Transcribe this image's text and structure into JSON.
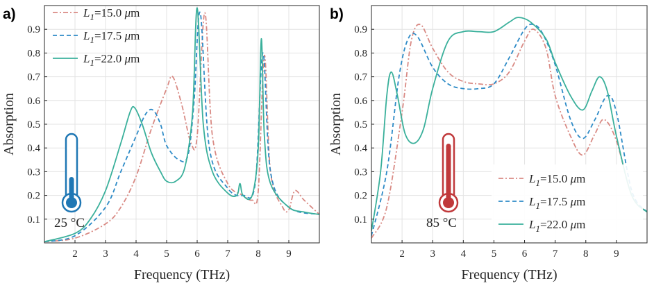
{
  "chart_data": [
    {
      "type": "line",
      "panel_label": "a)",
      "xlabel": "Frequency (THz)",
      "ylabel": "Absorption",
      "xlim": [
        1,
        10
      ],
      "ylim": [
        0,
        1
      ],
      "xticks": [
        "2",
        "3",
        "4",
        "5",
        "6",
        "7",
        "8",
        "9"
      ],
      "yticks": [
        "0.1",
        "0.2",
        "0.3",
        "0.4",
        "0.5",
        "0.6",
        "0.7",
        "0.8",
        "0.9"
      ],
      "grid": true,
      "legend_position": "top-left",
      "temperature_label": "25 °C",
      "temperature_icon": "thermometer-cold-icon",
      "temperature_color": "#1f77b4",
      "series": [
        {
          "name": "L1=15.0 μm",
          "name_parts": {
            "var": "L",
            "sub": "1",
            "val": "=15.0 ",
            "mu": "μ",
            "unit": "m"
          },
          "style": "dashdot",
          "color": "#d98a84",
          "x": [
            1.0,
            2.0,
            3.0,
            3.5,
            4.0,
            4.5,
            5.0,
            5.2,
            5.5,
            5.8,
            6.0,
            6.25,
            6.5,
            7.0,
            7.5,
            7.8,
            8.0,
            8.2,
            8.4,
            8.8,
            9.0,
            9.2,
            9.5,
            10.0
          ],
          "y": [
            0.005,
            0.02,
            0.08,
            0.15,
            0.28,
            0.48,
            0.65,
            0.7,
            0.58,
            0.42,
            0.45,
            0.97,
            0.45,
            0.25,
            0.2,
            0.18,
            0.22,
            0.79,
            0.3,
            0.15,
            0.14,
            0.22,
            0.18,
            0.12
          ]
        },
        {
          "name": "L1=17.5 μm",
          "name_parts": {
            "var": "L",
            "sub": "1",
            "val": "=17.5 ",
            "mu": "μ",
            "unit": "m"
          },
          "style": "dashed",
          "color": "#2e8bc7",
          "x": [
            1.0,
            2.0,
            3.0,
            3.5,
            4.0,
            4.3,
            4.55,
            4.8,
            5.0,
            5.4,
            5.7,
            5.9,
            6.1,
            6.4,
            7.0,
            7.5,
            7.9,
            8.15,
            8.4,
            9.0,
            10.0
          ],
          "y": [
            0.005,
            0.03,
            0.15,
            0.3,
            0.45,
            0.54,
            0.56,
            0.5,
            0.41,
            0.35,
            0.37,
            0.6,
            0.97,
            0.4,
            0.23,
            0.2,
            0.25,
            0.8,
            0.3,
            0.15,
            0.12
          ]
        },
        {
          "name": "L1=22.0 μm",
          "name_parts": {
            "var": "L",
            "sub": "1",
            "val": "=22.0 ",
            "mu": "μ",
            "unit": "m"
          },
          "style": "solid",
          "color": "#3ab09b",
          "x": [
            1.0,
            2.0,
            2.5,
            3.0,
            3.5,
            3.8,
            3.95,
            4.2,
            4.5,
            4.8,
            5.0,
            5.3,
            5.6,
            5.85,
            6.0,
            6.2,
            6.5,
            7.0,
            7.3,
            7.4,
            7.5,
            7.8,
            8.0,
            8.1,
            8.2,
            8.4,
            9.0,
            9.5,
            10.0
          ],
          "y": [
            0.005,
            0.04,
            0.1,
            0.22,
            0.42,
            0.55,
            0.57,
            0.5,
            0.38,
            0.3,
            0.26,
            0.26,
            0.32,
            0.55,
            0.99,
            0.5,
            0.3,
            0.21,
            0.2,
            0.25,
            0.2,
            0.2,
            0.4,
            0.86,
            0.45,
            0.25,
            0.15,
            0.13,
            0.12
          ]
        }
      ]
    },
    {
      "type": "line",
      "panel_label": "b)",
      "xlabel": "Frequency (THz)",
      "ylabel": "Absorption",
      "xlim": [
        1,
        10
      ],
      "ylim": [
        0,
        1
      ],
      "xticks": [
        "2",
        "3",
        "4",
        "5",
        "6",
        "7",
        "8",
        "9"
      ],
      "yticks": [
        "0.1",
        "0.2",
        "0.3",
        "0.4",
        "0.5",
        "0.6",
        "0.7",
        "0.8",
        "0.9"
      ],
      "grid": true,
      "legend_position": "bottom-right",
      "temperature_label": "85 °C",
      "temperature_icon": "thermometer-hot-icon",
      "temperature_color": "#c0393b",
      "series": [
        {
          "name": "L1=15.0 μm",
          "name_parts": {
            "var": "L",
            "sub": "1",
            "val": "=15.0 ",
            "mu": "μ",
            "unit": "m"
          },
          "style": "dashdot",
          "color": "#d98a84",
          "x": [
            1.0,
            1.5,
            2.0,
            2.3,
            2.6,
            3.0,
            3.5,
            4.0,
            4.5,
            5.0,
            5.5,
            6.0,
            6.3,
            6.7,
            7.0,
            7.5,
            7.9,
            8.3,
            8.6,
            9.0,
            9.5,
            10.0
          ],
          "y": [
            0.02,
            0.15,
            0.55,
            0.85,
            0.92,
            0.82,
            0.72,
            0.68,
            0.67,
            0.67,
            0.72,
            0.85,
            0.9,
            0.82,
            0.62,
            0.45,
            0.37,
            0.46,
            0.52,
            0.43,
            0.2,
            0.13
          ]
        },
        {
          "name": "L1=17.5 μm",
          "name_parts": {
            "var": "L",
            "sub": "1",
            "val": "=17.5 ",
            "mu": "μ",
            "unit": "m"
          },
          "style": "dashed",
          "color": "#2e8bc7",
          "x": [
            1.0,
            1.5,
            1.9,
            2.2,
            2.5,
            3.0,
            3.5,
            4.0,
            4.5,
            5.0,
            5.5,
            6.0,
            6.3,
            6.6,
            7.0,
            7.5,
            7.9,
            8.3,
            8.7,
            9.0,
            9.5,
            10.0
          ],
          "y": [
            0.03,
            0.3,
            0.7,
            0.86,
            0.87,
            0.74,
            0.67,
            0.65,
            0.65,
            0.67,
            0.78,
            0.9,
            0.92,
            0.88,
            0.75,
            0.52,
            0.44,
            0.52,
            0.62,
            0.55,
            0.22,
            0.13
          ]
        },
        {
          "name": "L1=22.0 μm",
          "name_parts": {
            "var": "L",
            "sub": "1",
            "val": "=22.0 ",
            "mu": "μ",
            "unit": "m"
          },
          "style": "solid",
          "color": "#3ab09b",
          "x": [
            1.0,
            1.3,
            1.5,
            1.65,
            1.85,
            2.1,
            2.4,
            2.7,
            3.0,
            3.5,
            4.0,
            4.5,
            5.0,
            5.5,
            5.8,
            6.2,
            6.7,
            7.0,
            7.5,
            7.9,
            8.2,
            8.45,
            8.7,
            9.0,
            9.5,
            10.0
          ],
          "y": [
            0.05,
            0.3,
            0.62,
            0.72,
            0.62,
            0.46,
            0.42,
            0.48,
            0.65,
            0.85,
            0.89,
            0.89,
            0.89,
            0.93,
            0.95,
            0.93,
            0.86,
            0.76,
            0.62,
            0.56,
            0.64,
            0.7,
            0.64,
            0.45,
            0.2,
            0.13
          ]
        }
      ]
    }
  ]
}
